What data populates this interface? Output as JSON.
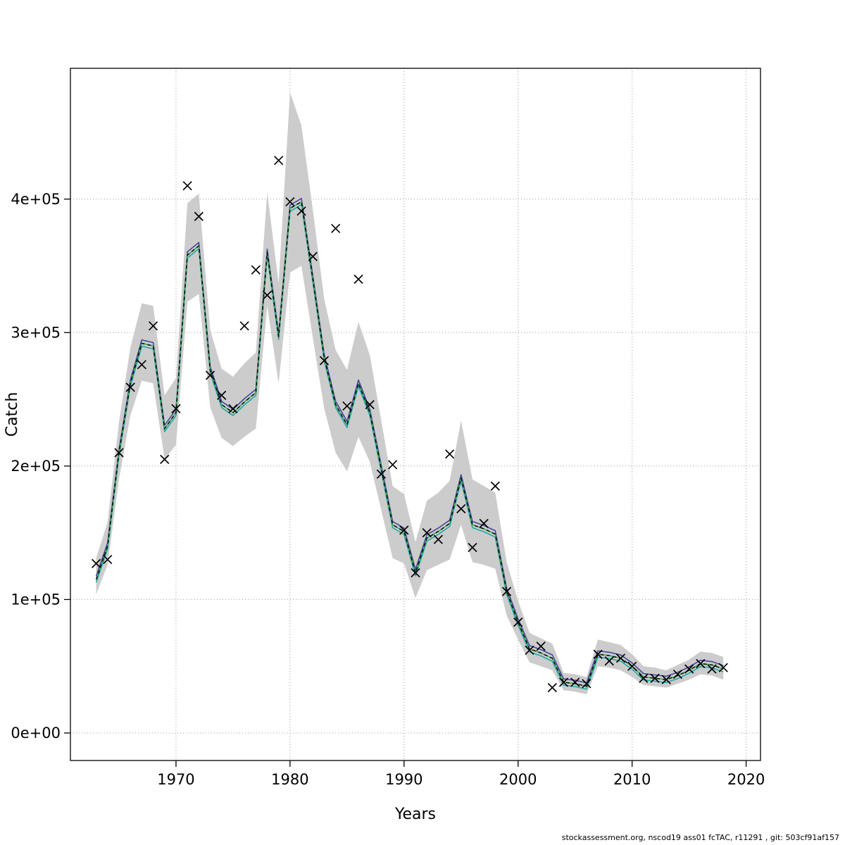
{
  "footer": {
    "text": "stockassessment.org, nscod19 ass01 fcTAC, r11291 , git: 503cf91af157"
  },
  "chart_data": {
    "type": "line",
    "title": "",
    "xlabel": "Years",
    "ylabel": "Catch",
    "grid": "dotted",
    "legend_position": "none",
    "xlim": [
      1960.74,
      2021.26
    ],
    "ylim": [
      -20600,
      498000
    ],
    "x_ticks": [
      1970,
      1980,
      1990,
      2000,
      2010,
      2020
    ],
    "y_ticks": [
      0,
      100000,
      200000,
      300000,
      400000
    ],
    "y_tick_labels": [
      "0e+00",
      "1e+05",
      "2e+05",
      "3e+05",
      "4e+05"
    ],
    "band_color": "#cccccc",
    "years": [
      1963,
      1964,
      1965,
      1966,
      1967,
      1968,
      1969,
      1970,
      1971,
      1972,
      1973,
      1974,
      1975,
      1976,
      1977,
      1978,
      1979,
      1980,
      1981,
      1982,
      1983,
      1984,
      1985,
      1986,
      1987,
      1988,
      1989,
      1990,
      1991,
      1992,
      1993,
      1994,
      1995,
      1996,
      1997,
      1998,
      1999,
      2000,
      2001,
      2002,
      2003,
      2004,
      2005,
      2006,
      2007,
      2008,
      2009,
      2010,
      2011,
      2012,
      2013,
      2014,
      2015,
      2016,
      2017,
      2018
    ],
    "observed": [
      127000,
      130000,
      210000,
      259000,
      276000,
      305000,
      205000,
      243000,
      410000,
      387000,
      268000,
      253000,
      243000,
      305000,
      347000,
      328000,
      429000,
      398000,
      391000,
      357000,
      279000,
      378000,
      245000,
      340000,
      246000,
      194000,
      201000,
      152000,
      120000,
      150000,
      145000,
      209000,
      168000,
      139000,
      157000,
      185000,
      106000,
      83000,
      62000,
      65000,
      34000,
      38000,
      38000,
      37000,
      59000,
      54000,
      56000,
      50000,
      41000,
      41000,
      40000,
      44000,
      48000,
      52000,
      48000,
      49000
    ],
    "fit": [
      115000,
      140000,
      210000,
      262000,
      292000,
      290000,
      228000,
      240000,
      358000,
      365000,
      272000,
      246000,
      240000,
      248000,
      255000,
      360000,
      297000,
      393000,
      398000,
      340000,
      281000,
      246000,
      231000,
      262000,
      240000,
      198000,
      156000,
      151000,
      120000,
      146000,
      151000,
      157000,
      191000,
      156000,
      153000,
      149000,
      106000,
      83000,
      63000,
      60000,
      56000,
      38000,
      37000,
      35000,
      59000,
      58000,
      56000,
      50000,
      42000,
      41000,
      40000,
      43000,
      47000,
      52000,
      51000,
      48000
    ],
    "ci_lower": [
      104000,
      126000,
      190000,
      238000,
      264000,
      262000,
      205000,
      216000,
      323000,
      329000,
      244000,
      221000,
      215000,
      222000,
      228000,
      320000,
      262000,
      345000,
      350000,
      296000,
      243000,
      210000,
      196000,
      222000,
      203000,
      167000,
      131000,
      127000,
      101000,
      122000,
      126000,
      130000,
      156000,
      128000,
      126000,
      123000,
      88000,
      70000,
      53000,
      50000,
      47000,
      32000,
      31000,
      29000,
      50000,
      49000,
      47000,
      42000,
      36000,
      35000,
      34000,
      37000,
      40000,
      44000,
      43000,
      40000
    ],
    "ci_upper": [
      131000,
      158000,
      233000,
      289000,
      322000,
      320000,
      253000,
      266000,
      397000,
      404000,
      302000,
      273000,
      267000,
      277000,
      285000,
      405000,
      337000,
      480000,
      455000,
      392000,
      325000,
      287000,
      272000,
      308000,
      283000,
      234000,
      185000,
      179000,
      143000,
      174000,
      180000,
      189000,
      234000,
      190000,
      185000,
      180000,
      128000,
      99000,
      75000,
      71000,
      67000,
      45000,
      44000,
      42000,
      70000,
      68000,
      66000,
      59000,
      50000,
      49000,
      47000,
      51000,
      55000,
      61000,
      60000,
      57000
    ],
    "fit_lines": [
      {
        "name": "fit-run-blue",
        "color": "#4545a0",
        "dy": 2500,
        "dash": ""
      },
      {
        "name": "fit-run-teal",
        "color": "#20a8a8",
        "dy": -2200,
        "dash": ""
      },
      {
        "name": "fit-run-green",
        "color": "#3cb043",
        "dy": 0,
        "dash": ""
      },
      {
        "name": "fit-run-dashed",
        "color": "#111111",
        "dy": 0,
        "dash": "5 4"
      }
    ],
    "marker": {
      "shape": "x-cross",
      "size": 6,
      "color": "#000000"
    }
  }
}
